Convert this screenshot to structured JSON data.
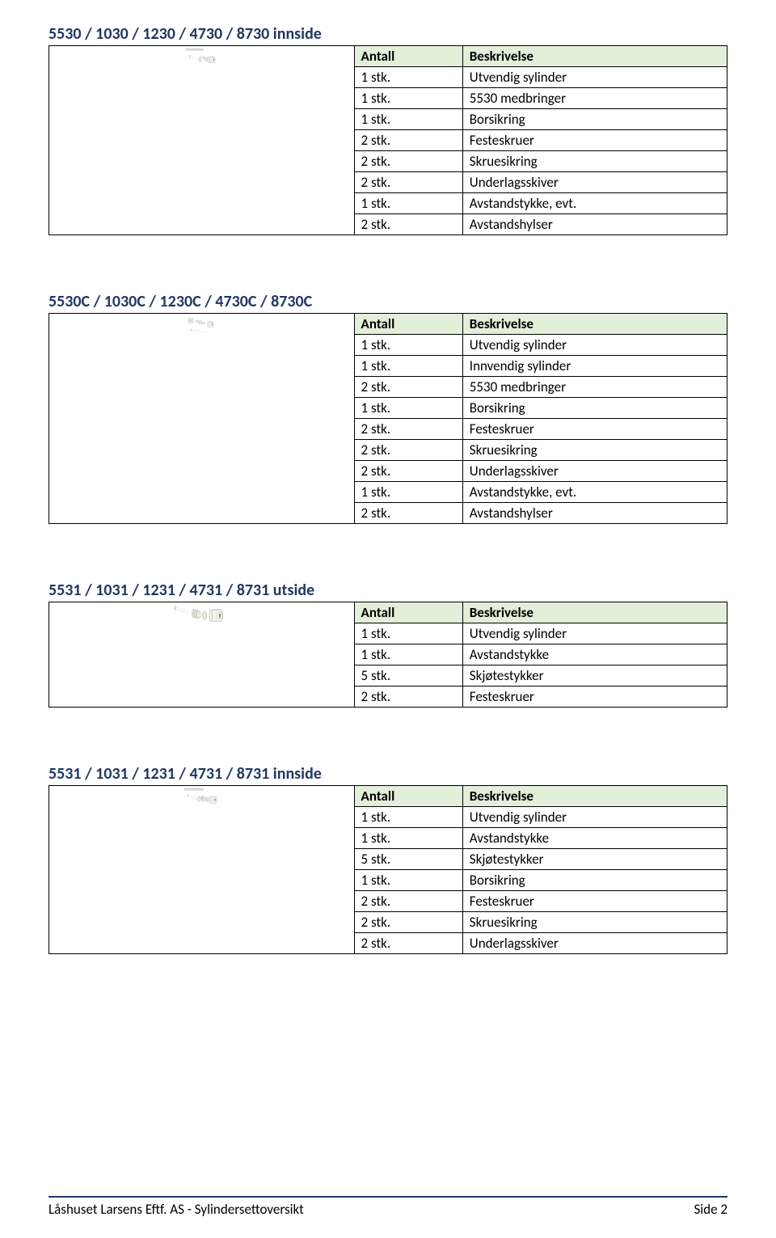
{
  "colors": {
    "title_color": "#1f3864",
    "header_bg": "#e2efd9",
    "border": "#000000",
    "footer_rule": "#1f3864",
    "diagram_stroke": "#5b6b5a",
    "diagram_fill": "#f5f1e8"
  },
  "fonts": {
    "title_size_pt": 15,
    "cell_size_pt": 12
  },
  "columns": {
    "qty_header": "Antall",
    "desc_header": "Beskrivelse"
  },
  "sections": [
    {
      "title": "5530 / 1030 / 1230 / 4730 / 8730 innside",
      "diagram": "cylinder-innside",
      "rows": [
        {
          "qty": "1 stk.",
          "desc": "Utvendig sylinder"
        },
        {
          "qty": "1 stk.",
          "desc": "5530 medbringer"
        },
        {
          "qty": "1 stk.",
          "desc": "Borsikring"
        },
        {
          "qty": "2 stk.",
          "desc": "Festeskruer"
        },
        {
          "qty": "2 stk.",
          "desc": "Skruesikring"
        },
        {
          "qty": "2 stk.",
          "desc": "Underlagsskiver"
        },
        {
          "qty": "1 stk.",
          "desc": "Avstandstykke, evt."
        },
        {
          "qty": "2 stk.",
          "desc": "Avstandshylser"
        }
      ]
    },
    {
      "title": "5530C / 1030C / 1230C / 4730C / 8730C",
      "diagram": "cylinder-double",
      "rows": [
        {
          "qty": "1 stk.",
          "desc": "Utvendig sylinder"
        },
        {
          "qty": "1 stk.",
          "desc": "Innvendig sylinder"
        },
        {
          "qty": "2 stk.",
          "desc": "5530 medbringer"
        },
        {
          "qty": "1 stk.",
          "desc": "Borsikring"
        },
        {
          "qty": "2 stk.",
          "desc": "Festeskruer"
        },
        {
          "qty": "2 stk.",
          "desc": "Skruesikring"
        },
        {
          "qty": "2 stk.",
          "desc": "Underlagsskiver"
        },
        {
          "qty": "1 stk.",
          "desc": "Avstandstykke, evt."
        },
        {
          "qty": "2 stk.",
          "desc": "Avstandshylser"
        }
      ]
    },
    {
      "title": "5531 / 1031 / 1231 / 4731 / 8731 utside",
      "diagram": "cylinder-utside",
      "rows": [
        {
          "qty": "1 stk.",
          "desc": "Utvendig sylinder"
        },
        {
          "qty": "1 stk.",
          "desc": "Avstandstykke"
        },
        {
          "qty": "5 stk.",
          "desc": "Skjøtestykker"
        },
        {
          "qty": "2 stk.",
          "desc": "Festeskruer"
        }
      ]
    },
    {
      "title": "5531 / 1031 / 1231 / 4731 / 8731 innside",
      "diagram": "cylinder-innside-5531",
      "rows": [
        {
          "qty": "1 stk.",
          "desc": "Utvendig sylinder"
        },
        {
          "qty": "1 stk.",
          "desc": "Avstandstykke"
        },
        {
          "qty": "5 stk.",
          "desc": "Skjøtestykker"
        },
        {
          "qty": "1 stk.",
          "desc": "Borsikring"
        },
        {
          "qty": "2 stk.",
          "desc": "Festeskruer"
        },
        {
          "qty": "2 stk.",
          "desc": "Skruesikring"
        },
        {
          "qty": "2 stk.",
          "desc": "Underlagsskiver"
        }
      ]
    }
  ],
  "footer": {
    "left": "Låshuset Larsens Eftf. AS - Sylindersettoversikt",
    "right": "Side 2"
  }
}
